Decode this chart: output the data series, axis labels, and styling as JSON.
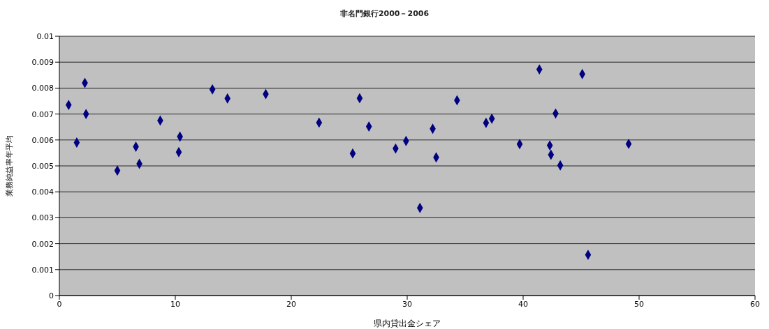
{
  "chart_data": {
    "type": "scatter",
    "title": "非名門銀行2000－2006",
    "xlabel": "県内貸出金シェア",
    "ylabel": "業務純益率年平均",
    "x": [
      0.8,
      2.2,
      2.3,
      1.5,
      5.0,
      6.6,
      6.9,
      8.7,
      10.4,
      10.3,
      13.2,
      14.5,
      17.8,
      22.4,
      25.9,
      26.7,
      25.3,
      29.0,
      29.9,
      31.1,
      32.2,
      32.5,
      34.3,
      36.8,
      37.3,
      39.7,
      41.4,
      45.1,
      42.8,
      42.3,
      49.1,
      42.4,
      43.2,
      45.6
    ],
    "series": [
      {
        "color": "#000080",
        "values": [
          0.00735,
          0.0082,
          0.007,
          0.0059,
          0.00482,
          0.00574,
          0.00508,
          0.00675,
          0.00613,
          0.00553,
          0.00795,
          0.0076,
          0.00777,
          0.00667,
          0.00761,
          0.00652,
          0.00548,
          0.00567,
          0.00596,
          0.00338,
          0.00643,
          0.00533,
          0.00753,
          0.00666,
          0.00682,
          0.00584,
          0.00872,
          0.00854,
          0.00702,
          0.00579,
          0.00585,
          0.00543,
          0.00502,
          0.00157
        ]
      }
    ],
    "xlim": [
      0,
      60
    ],
    "xticks": [
      0,
      10,
      20,
      30,
      40,
      50,
      60
    ],
    "ylim": [
      0,
      0.01
    ],
    "yticks": [
      0,
      0.001,
      0.002,
      0.003,
      0.004,
      0.005,
      0.006,
      0.007,
      0.008,
      0.009,
      0.01
    ],
    "grid": "y",
    "marker": "diamond"
  }
}
